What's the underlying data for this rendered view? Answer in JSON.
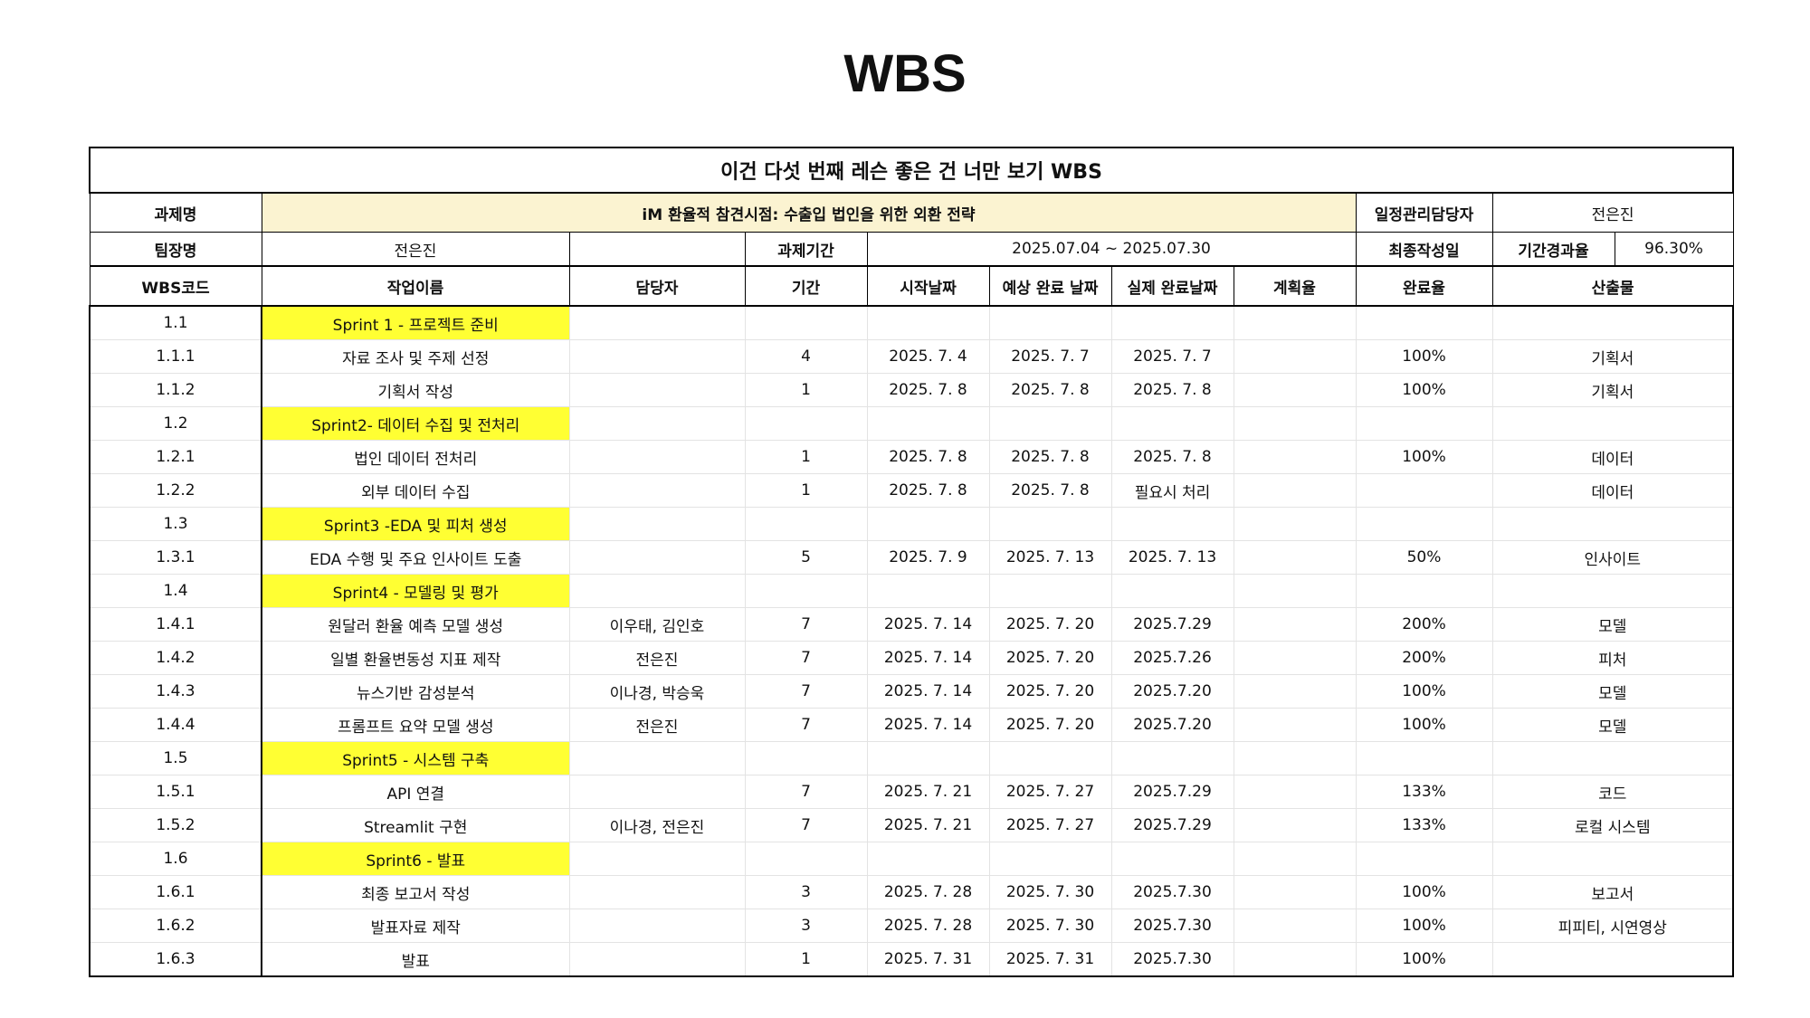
{
  "page_title": "WBS",
  "sheet_title": "이건 다섯 번째 레슨 좋은 건 너만 보기 WBS",
  "info": {
    "topic_label": "과제명",
    "topic_value": "iM 환율적 참견시점: 수출입 법인을 위한 외환 전략",
    "schedule_manager_label": "일정관리담당자",
    "schedule_manager_value": "전은진",
    "leader_label": "팀장명",
    "leader_value": "전은진",
    "period_label": "과제기간",
    "period_value": "2025.07.04 ~ 2025.07.30",
    "last_written_label": "최종작성일",
    "elapsed_label": "기간경과율",
    "elapsed_value": "96.30%"
  },
  "columns": [
    "WBS코드",
    "작업이름",
    "담당자",
    "기간",
    "시작날짜",
    "예상 완료 날짜",
    "실제 완료날짜",
    "계획율",
    "완료율",
    "산출물"
  ],
  "rows": [
    {
      "code": "1.1",
      "task": "Sprint 1 - 프로젝트 준비",
      "owner": "",
      "duration": "",
      "start": "",
      "expected": "",
      "actual": "",
      "plan": "",
      "done": "",
      "output": ""
    },
    {
      "code": "1.1.1",
      "task": "자료 조사 및 주제 선정",
      "owner": "",
      "duration": "4",
      "start": "2025. 7. 4",
      "expected": "2025. 7. 7",
      "actual": "2025. 7. 7",
      "plan": "",
      "done": "100%",
      "output": "기획서"
    },
    {
      "code": "1.1.2",
      "task": "기획서 작성",
      "owner": "",
      "duration": "1",
      "start": "2025. 7. 8",
      "expected": "2025. 7. 8",
      "actual": "2025. 7. 8",
      "plan": "",
      "done": "100%",
      "output": "기획서"
    },
    {
      "code": "1.2",
      "task": "Sprint2- 데이터 수집 및 전처리",
      "owner": "",
      "duration": "",
      "start": "",
      "expected": "",
      "actual": "",
      "plan": "",
      "done": "",
      "output": ""
    },
    {
      "code": "1.2.1",
      "task": "법인 데이터 전처리",
      "owner": "",
      "duration": "1",
      "start": "2025. 7. 8",
      "expected": "2025. 7. 8",
      "actual": "2025. 7. 8",
      "plan": "",
      "done": "100%",
      "output": "데이터"
    },
    {
      "code": "1.2.2",
      "task": "외부 데이터 수집",
      "owner": "",
      "duration": "1",
      "start": "2025. 7. 8",
      "expected": "2025. 7. 8",
      "actual": "필요시 처리",
      "plan": "",
      "done": "",
      "output": "데이터"
    },
    {
      "code": "1.3",
      "task": "Sprint3 -EDA 및 피처 생성",
      "owner": "",
      "duration": "",
      "start": "",
      "expected": "",
      "actual": "",
      "plan": "",
      "done": "",
      "output": ""
    },
    {
      "code": "1.3.1",
      "task": "EDA 수행 및 주요 인사이트 도출",
      "owner": "",
      "duration": "5",
      "start": "2025. 7. 9",
      "expected": "2025. 7. 13",
      "actual": "2025. 7. 13",
      "plan": "",
      "done": "50%",
      "output": "인사이트"
    },
    {
      "code": "1.4",
      "task": "Sprint4 - 모델링 및 평가",
      "owner": "",
      "duration": "",
      "start": "",
      "expected": "",
      "actual": "",
      "plan": "",
      "done": "",
      "output": ""
    },
    {
      "code": "1.4.1",
      "task": "원달러 환율 예측 모델 생성",
      "owner": "이우태, 김인호",
      "duration": "7",
      "start": "2025. 7. 14",
      "expected": "2025. 7. 20",
      "actual": "2025.7.29",
      "plan": "",
      "done": "200%",
      "output": "모델"
    },
    {
      "code": "1.4.2",
      "task": "일별 환율변동성 지표 제작",
      "owner": "전은진",
      "duration": "7",
      "start": "2025. 7. 14",
      "expected": "2025. 7. 20",
      "actual": "2025.7.26",
      "plan": "",
      "done": "200%",
      "output": "피처"
    },
    {
      "code": "1.4.3",
      "task": "뉴스기반 감성분석",
      "owner": "이나경, 박승욱",
      "duration": "7",
      "start": "2025. 7. 14",
      "expected": "2025. 7. 20",
      "actual": "2025.7.20",
      "plan": "",
      "done": "100%",
      "output": "모델"
    },
    {
      "code": "1.4.4",
      "task": "프롬프트 요약 모델 생성",
      "owner": "전은진",
      "duration": "7",
      "start": "2025. 7. 14",
      "expected": "2025. 7. 20",
      "actual": "2025.7.20",
      "plan": "",
      "done": "100%",
      "output": "모델"
    },
    {
      "code": "1.5",
      "task": "Sprint5 - 시스템 구축",
      "owner": "",
      "duration": "",
      "start": "",
      "expected": "",
      "actual": "",
      "plan": "",
      "done": "",
      "output": ""
    },
    {
      "code": "1.5.1",
      "task": "API 연결",
      "owner": "",
      "duration": "7",
      "start": "2025. 7. 21",
      "expected": "2025. 7. 27",
      "actual": "2025.7.29",
      "plan": "",
      "done": "133%",
      "output": "코드"
    },
    {
      "code": "1.5.2",
      "task": "Streamlit 구현",
      "owner": "이나경, 전은진",
      "duration": "7",
      "start": "2025. 7. 21",
      "expected": "2025. 7. 27",
      "actual": "2025.7.29",
      "plan": "",
      "done": "133%",
      "output": "로컬 시스템"
    },
    {
      "code": "1.6",
      "task": "Sprint6 - 발표",
      "owner": "",
      "duration": "",
      "start": "",
      "expected": "",
      "actual": "",
      "plan": "",
      "done": "",
      "output": ""
    },
    {
      "code": "1.6.1",
      "task": "최종 보고서 작성",
      "owner": "",
      "duration": "3",
      "start": "2025. 7. 28",
      "expected": "2025. 7. 30",
      "actual": "2025.7.30",
      "plan": "",
      "done": "100%",
      "output": "보고서"
    },
    {
      "code": "1.6.2",
      "task": "발표자료 제작",
      "owner": "",
      "duration": "3",
      "start": "2025. 7. 28",
      "expected": "2025. 7. 30",
      "actual": "2025.7.30",
      "plan": "",
      "done": "100%",
      "output": "피피티, 시연영상"
    },
    {
      "code": "1.6.3",
      "task": "발표",
      "owner": "",
      "duration": "1",
      "start": "2025. 7. 31",
      "expected": "2025. 7. 31",
      "actual": "2025.7.30",
      "plan": "",
      "done": "100%",
      "output": ""
    }
  ],
  "colors": {
    "sprint_highlight": "#ffff33",
    "topic_background": "#fbf3d1",
    "border": "#000000"
  }
}
